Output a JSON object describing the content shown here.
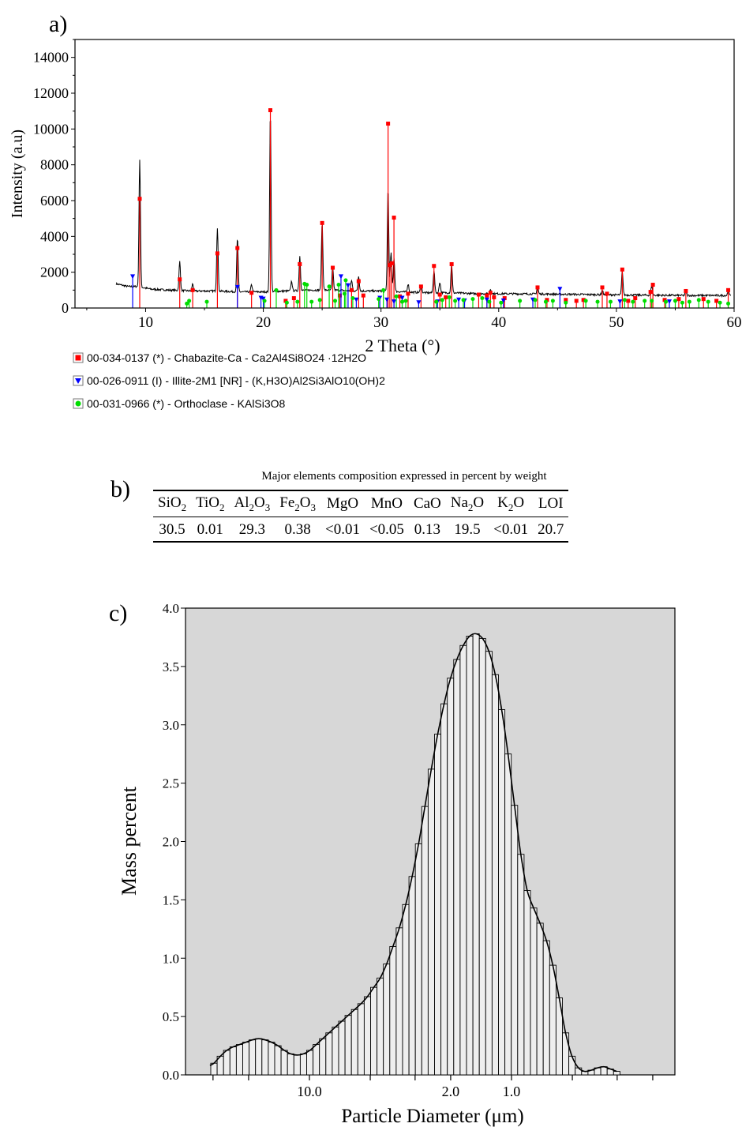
{
  "chart_data": [
    {
      "panel": "a)",
      "type": "line",
      "xlabel": "2 Theta (°)",
      "ylabel": "Intensity (a.u)",
      "xlim": [
        4,
        60
      ],
      "ylim": [
        0,
        15000
      ],
      "xticks": [
        10,
        20,
        30,
        40,
        50,
        60
      ],
      "yticks": [
        0,
        2000,
        4000,
        6000,
        8000,
        10000,
        12000,
        14000
      ],
      "grid": false,
      "legend_position": "below",
      "background_start": [
        [
          7.5,
          1350
        ],
        [
          8.5,
          1200
        ],
        [
          9.3,
          1200
        ],
        [
          10.5,
          1050
        ],
        [
          12,
          1000
        ],
        [
          14,
          950
        ],
        [
          16,
          950
        ],
        [
          18,
          900
        ],
        [
          20,
          900
        ],
        [
          22,
          950
        ],
        [
          24,
          1000
        ],
        [
          26,
          1000
        ],
        [
          28,
          950
        ],
        [
          30,
          950
        ],
        [
          32,
          900
        ],
        [
          34,
          850
        ],
        [
          36,
          850
        ],
        [
          38,
          800
        ],
        [
          40,
          800
        ],
        [
          44,
          780
        ],
        [
          48,
          750
        ],
        [
          52,
          720
        ],
        [
          56,
          700
        ],
        [
          59.7,
          700
        ]
      ],
      "peaks": [
        [
          9.5,
          8300
        ],
        [
          12.9,
          2600
        ],
        [
          14.0,
          1350
        ],
        [
          16.1,
          4500
        ],
        [
          17.8,
          3900
        ],
        [
          19.0,
          1300
        ],
        [
          20.6,
          11000
        ],
        [
          22.4,
          1500
        ],
        [
          23.1,
          2900
        ],
        [
          25.0,
          4800
        ],
        [
          25.9,
          2300
        ],
        [
          27.5,
          1550
        ],
        [
          28.1,
          1800
        ],
        [
          30.6,
          6700
        ],
        [
          30.85,
          3100
        ],
        [
          31.1,
          2800
        ],
        [
          32.3,
          1350
        ],
        [
          33.4,
          1300
        ],
        [
          34.5,
          2100
        ],
        [
          35.0,
          1450
        ],
        [
          36.0,
          2450
        ],
        [
          39.3,
          1050
        ],
        [
          43.3,
          1200
        ],
        [
          48.8,
          1000
        ],
        [
          50.5,
          2100
        ],
        [
          53.0,
          1250
        ],
        [
          55.9,
          950
        ],
        [
          59.5,
          950
        ]
      ],
      "legend": [
        {
          "label": "00-034-0137 (*) - Chabazite-Ca - Ca2Al4Si8O24 ·12H2O",
          "color": "#ff0000",
          "marker": "square"
        },
        {
          "label": "00-026-0911 (I) - Illite-2M1 [NR] - (K,H3O)Al2Si3AlO10(OH)2",
          "color": "#0000ff",
          "marker": "triangle-down"
        },
        {
          "label": "00-031-0966 (*) - Orthoclase - KAlSi3O8",
          "color": "#00dd00",
          "marker": "circle"
        }
      ],
      "series": [
        {
          "name": "00-034-0137 (*) - Chabazite-Ca - Ca2Al4Si8O24 ·12H2O",
          "color": "#ff0000",
          "x": [
            9.5,
            12.9,
            14.0,
            16.1,
            17.8,
            19.0,
            20.6,
            21.9,
            22.6,
            23.1,
            25.0,
            25.9,
            26.5,
            27.5,
            28.1,
            28.5,
            30.6,
            30.75,
            30.9,
            31.1,
            31.6,
            32.3,
            33.4,
            34.5,
            35.0,
            35.5,
            36.0,
            38.3,
            39.0,
            39.3,
            39.6,
            40.5,
            43.3,
            44.1,
            45.7,
            46.6,
            47.2,
            48.8,
            49.2,
            50.5,
            51.0,
            51.6,
            52.9,
            53.1,
            54.1,
            55.3,
            55.9,
            57.4,
            58.5,
            59.5
          ],
          "y": [
            6100,
            1600,
            1000,
            3050,
            3350,
            850,
            11050,
            400,
            550,
            2450,
            4750,
            2250,
            700,
            1000,
            1500,
            700,
            10300,
            2400,
            2500,
            5050,
            650,
            800,
            1200,
            2350,
            750,
            600,
            2450,
            750,
            700,
            850,
            600,
            550,
            1150,
            450,
            450,
            400,
            450,
            1150,
            800,
            2150,
            400,
            550,
            900,
            1300,
            450,
            500,
            950,
            500,
            400,
            1000
          ]
        },
        {
          "name": "00-026-0911 (I) - Illite-2M1 [NR] - (K,H3O)Al2Si3AlO10(OH)2",
          "color": "#0000ff",
          "x": [
            8.9,
            17.8,
            19.8,
            20.0,
            26.6,
            27.2,
            27.9,
            29.9,
            30.5,
            31.1,
            31.8,
            33.2,
            34.8,
            36.6,
            37.1,
            39.0,
            40.4,
            42.9,
            45.2,
            50.3,
            54.5
          ],
          "y": [
            1750,
            1150,
            550,
            500,
            1750,
            1250,
            450,
            550,
            450,
            350,
            550,
            300,
            350,
            450,
            400,
            450,
            400,
            450,
            1050,
            350,
            350
          ]
        },
        {
          "name": "00-031-0966 (*) - Orthoclase - KAlSi3O8",
          "color": "#00dd00",
          "x": [
            13.5,
            13.7,
            15.2,
            20.1,
            21.1,
            22.0,
            22.9,
            23.5,
            23.7,
            24.1,
            24.8,
            25.6,
            26.1,
            26.4,
            26.9,
            27.0,
            27.6,
            29.8,
            30.2,
            31.3,
            31.8,
            32.1,
            34.7,
            35.2,
            35.8,
            36.3,
            37.0,
            37.8,
            38.6,
            39.2,
            40.2,
            41.8,
            43.1,
            44.0,
            44.6,
            45.7,
            47.4,
            48.4,
            49.5,
            50.7,
            51.4,
            52.4,
            53.0,
            54.2,
            55.0,
            55.6,
            56.2,
            57.0,
            57.8,
            58.8,
            59.5
          ],
          "y": [
            250,
            400,
            350,
            400,
            1000,
            300,
            350,
            1350,
            1300,
            350,
            450,
            1200,
            400,
            1300,
            800,
            1550,
            550,
            500,
            1000,
            650,
            350,
            400,
            350,
            450,
            600,
            400,
            450,
            500,
            550,
            350,
            300,
            400,
            450,
            350,
            400,
            300,
            400,
            350,
            350,
            450,
            350,
            400,
            400,
            350,
            400,
            300,
            350,
            450,
            350,
            300,
            250
          ]
        }
      ]
    },
    {
      "panel": "b)",
      "type": "table",
      "title": "Major elements composition expressed in percent by weight",
      "columns": [
        {
          "base": "SiO",
          "sub": "2"
        },
        {
          "base": "TiO",
          "sub": "2"
        },
        {
          "base": "Al",
          "sub": "2",
          "mid": "O",
          "sub2": "3"
        },
        {
          "base": "Fe",
          "sub": "2",
          "mid": "O",
          "sub2": "3"
        },
        {
          "base": "MgO"
        },
        {
          "base": "MnO"
        },
        {
          "base": "CaO"
        },
        {
          "base": "Na",
          "sub": "2",
          "mid": "O"
        },
        {
          "base": "K",
          "sub": "2",
          "mid": "O"
        },
        {
          "base": "LOI"
        }
      ],
      "rows": [
        [
          "30.5",
          "0.01",
          "29.3",
          "0.38",
          "<0.01",
          "<0.05",
          "0.13",
          "19.5",
          "<0.01",
          "20.7"
        ]
      ]
    },
    {
      "panel": "c)",
      "type": "bar",
      "xlabel": "Particle Diameter (μm)",
      "ylabel": "Mass percent",
      "ylim": [
        0,
        4
      ],
      "yticks": [
        "0.0",
        "0.5",
        "1.0",
        "1.5",
        "2.0",
        "2.5",
        "3.0",
        "3.5",
        "4.0"
      ],
      "xticks": [
        "10.0",
        "2.0",
        "1.0"
      ],
      "x_scale": "reversed log (largest diameter on the left)",
      "x_range_um": [
        60,
        0.15
      ],
      "background": "#d7d7d7",
      "bar_fill": "#eeeeee",
      "smooth_curve": true,
      "values": [
        0.1,
        0.16,
        0.21,
        0.24,
        0.26,
        0.28,
        0.3,
        0.31,
        0.3,
        0.28,
        0.25,
        0.21,
        0.18,
        0.17,
        0.18,
        0.21,
        0.26,
        0.31,
        0.36,
        0.41,
        0.46,
        0.51,
        0.56,
        0.61,
        0.67,
        0.75,
        0.83,
        0.95,
        1.1,
        1.26,
        1.46,
        1.7,
        1.98,
        2.3,
        2.62,
        2.92,
        3.18,
        3.4,
        3.56,
        3.68,
        3.76,
        3.78,
        3.74,
        3.63,
        3.43,
        3.13,
        2.75,
        2.31,
        1.89,
        1.58,
        1.43,
        1.3,
        1.15,
        0.94,
        0.66,
        0.36,
        0.16,
        0.06,
        0.03,
        0.04,
        0.06,
        0.07,
        0.05,
        0.03
      ]
    }
  ]
}
